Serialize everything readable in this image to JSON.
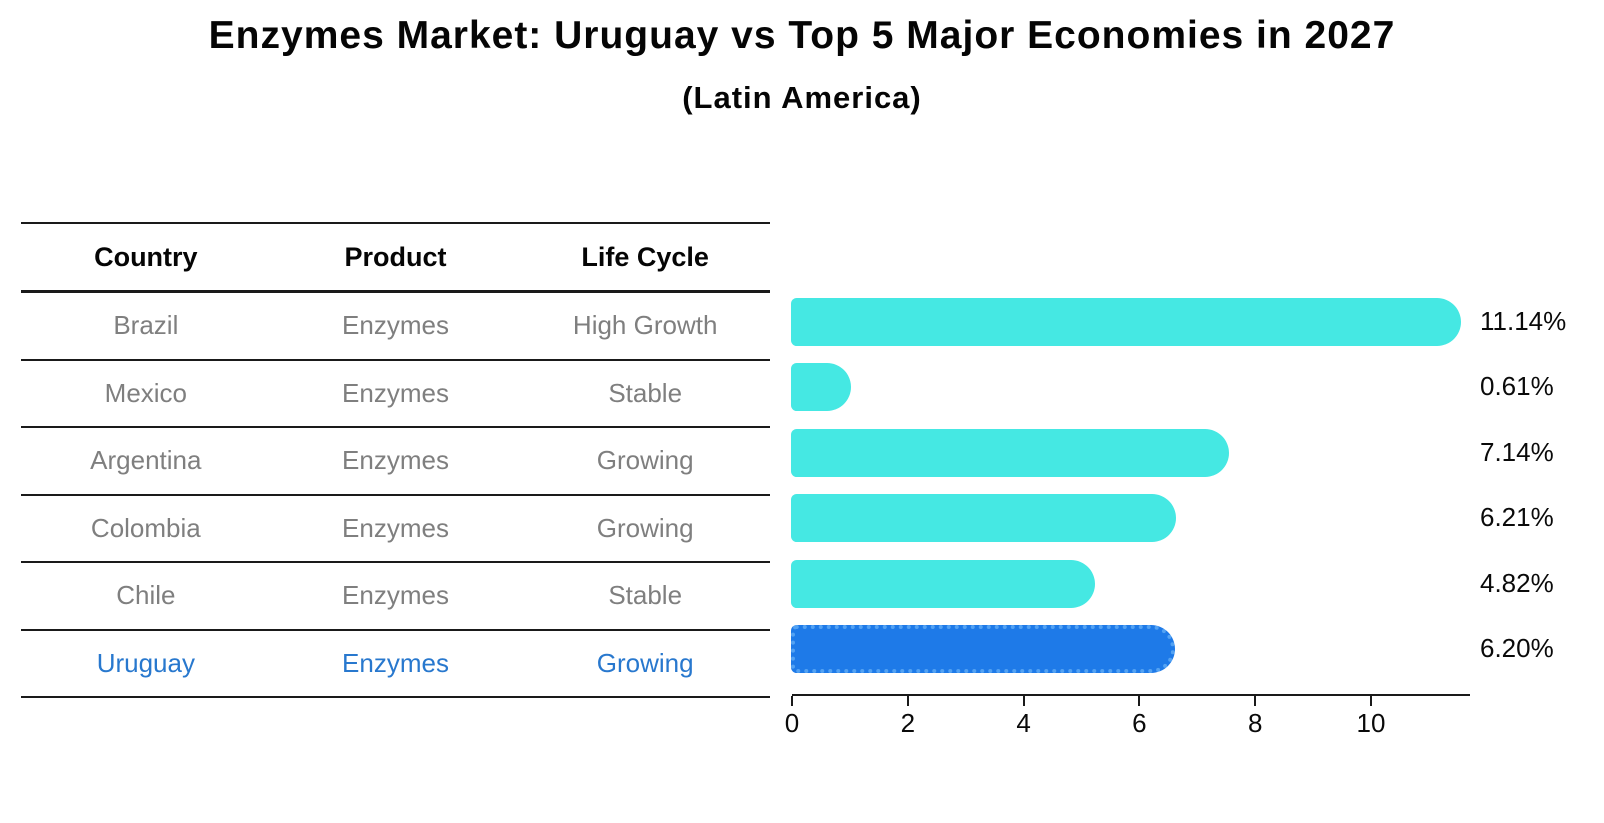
{
  "header": {
    "title": "Enzymes Market: Uruguay vs Top 5 Major Economies in 2027",
    "subtitle": "(Latin America)"
  },
  "table": {
    "columns": [
      "Country",
      "Product",
      "Life Cycle"
    ],
    "rows": [
      {
        "country": "Brazil",
        "product": "Enzymes",
        "life_cycle": "High Growth",
        "highlight": false
      },
      {
        "country": "Mexico",
        "product": "Enzymes",
        "life_cycle": "Stable",
        "highlight": false
      },
      {
        "country": "Argentina",
        "product": "Enzymes",
        "life_cycle": "Growing",
        "highlight": false
      },
      {
        "country": "Colombia",
        "product": "Enzymes",
        "life_cycle": "Growing",
        "highlight": false
      },
      {
        "country": "Chile",
        "product": "Enzymes",
        "life_cycle": "Stable",
        "highlight": false
      },
      {
        "country": "Uruguay",
        "product": "Enzymes",
        "life_cycle": "Growing",
        "highlight": true
      }
    ]
  },
  "chart_data": {
    "type": "bar",
    "orientation": "horizontal",
    "categories": [
      "Brazil",
      "Mexico",
      "Argentina",
      "Colombia",
      "Chile",
      "Uruguay"
    ],
    "values": [
      11.14,
      0.61,
      7.14,
      6.21,
      4.82,
      6.2
    ],
    "value_labels": [
      "11.14%",
      "0.61%",
      "7.14%",
      "6.21%",
      "4.82%",
      "6.20%"
    ],
    "x_ticks": [
      "0",
      "2",
      "4",
      "6",
      "8",
      "10"
    ],
    "xlim": [
      0,
      11.71
    ],
    "grid": "off",
    "legend": "none",
    "bar_color": "#45E8E3",
    "highlight_index": 5,
    "highlight_color": "#1E7AE8",
    "highlight_border": "#53A2F3",
    "highlight_text_color": "#2878CE",
    "highlight_border_style": "dotted"
  }
}
